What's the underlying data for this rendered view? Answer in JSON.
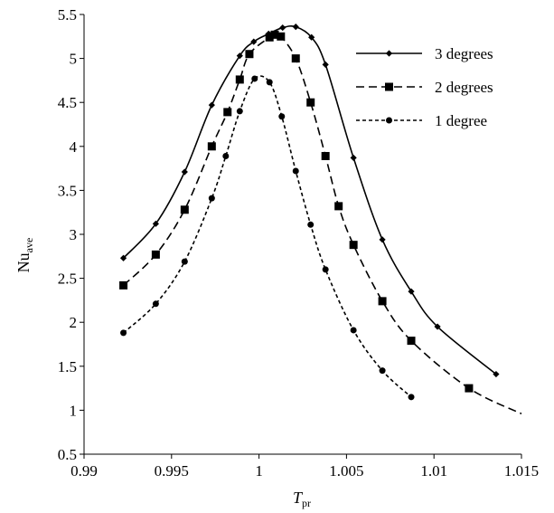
{
  "chart_data": {
    "type": "line",
    "xlabel": {
      "main": "T",
      "sub": "pr"
    },
    "ylabel": {
      "main": "Nu",
      "sub": "ave"
    },
    "xlim": [
      0.99,
      1.015
    ],
    "ylim": [
      0.5,
      5.5
    ],
    "x_ticks": [
      0.99,
      0.995,
      1,
      1.005,
      1.01,
      1.015
    ],
    "x_tick_labels": [
      "0.99",
      "0.995",
      "1",
      "1.005",
      "1.01",
      "1.015"
    ],
    "y_ticks": [
      0.5,
      1,
      1.5,
      2,
      2.5,
      3,
      3.5,
      4,
      4.5,
      5,
      5.5
    ],
    "y_tick_labels": [
      "0.5",
      "1",
      "1.5",
      "2",
      "2.5",
      "3",
      "3.5",
      "4",
      "4.5",
      "5",
      "5.5"
    ],
    "grid": false,
    "legend_position": "top-right",
    "series": [
      {
        "name": "3 degrees",
        "line_style": "solid",
        "marker": "diamond",
        "x": [
          0.99225,
          0.9941,
          0.99575,
          0.9973,
          0.9989,
          0.9997,
          1.00055,
          1.00135,
          1.0021,
          1.003,
          1.0038,
          1.0054,
          1.00705,
          1.0087,
          1.0102,
          1.01355
        ],
        "y": [
          2.73,
          3.12,
          3.71,
          4.47,
          5.03,
          5.19,
          5.28,
          5.35,
          5.36,
          5.24,
          4.93,
          3.87,
          2.94,
          2.35,
          1.95,
          1.41
        ]
      },
      {
        "name": "2 degrees",
        "line_style": "dashed",
        "marker": "square",
        "x": [
          0.99225,
          0.9941,
          0.99575,
          0.9973,
          0.9982,
          0.9989,
          0.99945,
          1.0006,
          1.0009,
          1.00125,
          1.0021,
          1.00295,
          1.0038,
          1.00455,
          1.0054,
          1.00705,
          1.0087,
          1.012,
          1.015
        ],
        "y": [
          2.42,
          2.77,
          3.28,
          4.0,
          4.39,
          4.76,
          5.05,
          5.24,
          5.27,
          5.25,
          5.0,
          4.5,
          3.89,
          3.32,
          2.88,
          2.24,
          1.79,
          1.25,
          0.96
        ],
        "markers_on": [
          true,
          true,
          true,
          true,
          true,
          true,
          true,
          true,
          true,
          true,
          true,
          true,
          true,
          true,
          true,
          true,
          true,
          true,
          false
        ]
      },
      {
        "name": "1 degree",
        "line_style": "short-dashed",
        "marker": "circle",
        "x": [
          0.99225,
          0.9941,
          0.99575,
          0.9973,
          0.9981,
          0.9989,
          0.99975,
          1.0006,
          1.0013,
          1.0021,
          1.00295,
          1.0038,
          1.0054,
          1.00705,
          1.0087
        ],
        "y": [
          1.88,
          2.21,
          2.69,
          3.41,
          3.89,
          4.4,
          4.77,
          4.73,
          4.34,
          3.72,
          3.11,
          2.6,
          1.91,
          1.45,
          1.15
        ]
      }
    ]
  }
}
